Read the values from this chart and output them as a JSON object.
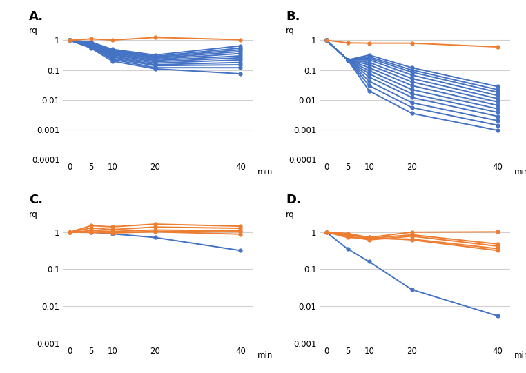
{
  "xvals": [
    0,
    5,
    10,
    20,
    40
  ],
  "panel_A": {
    "label": "A.",
    "blue_lines": [
      [
        1,
        0.88,
        0.5,
        0.32,
        0.65
      ],
      [
        1,
        0.85,
        0.47,
        0.29,
        0.55
      ],
      [
        1,
        0.82,
        0.44,
        0.27,
        0.48
      ],
      [
        1,
        0.79,
        0.41,
        0.25,
        0.42
      ],
      [
        1,
        0.76,
        0.38,
        0.23,
        0.36
      ],
      [
        1,
        0.73,
        0.35,
        0.21,
        0.3
      ],
      [
        1,
        0.7,
        0.33,
        0.19,
        0.26
      ],
      [
        1,
        0.67,
        0.3,
        0.17,
        0.22
      ],
      [
        1,
        0.64,
        0.28,
        0.15,
        0.18
      ],
      [
        1,
        0.61,
        0.25,
        0.14,
        0.15
      ],
      [
        1,
        0.58,
        0.23,
        0.12,
        0.12
      ],
      [
        1,
        0.55,
        0.2,
        0.11,
        0.075
      ]
    ],
    "orange_lines": [
      [
        1,
        1.12,
        1.02,
        1.25,
        1.05
      ]
    ],
    "ylim": [
      0.0001,
      3
    ],
    "yticks": [
      0.0001,
      0.001,
      0.01,
      0.1,
      1
    ],
    "ytick_labels": [
      "0.0001",
      "0.001",
      "0.01",
      "0.1",
      "1"
    ]
  },
  "panel_B": {
    "label": "B.",
    "blue_lines": [
      [
        1,
        0.22,
        0.32,
        0.12,
        0.028
      ],
      [
        1,
        0.22,
        0.28,
        0.1,
        0.022
      ],
      [
        1,
        0.22,
        0.25,
        0.085,
        0.018
      ],
      [
        1,
        0.22,
        0.22,
        0.068,
        0.014
      ],
      [
        1,
        0.22,
        0.18,
        0.052,
        0.011
      ],
      [
        1,
        0.22,
        0.15,
        0.04,
        0.0085
      ],
      [
        1,
        0.22,
        0.12,
        0.03,
        0.0065
      ],
      [
        1,
        0.22,
        0.095,
        0.022,
        0.005
      ],
      [
        1,
        0.22,
        0.075,
        0.016,
        0.0038
      ],
      [
        1,
        0.22,
        0.058,
        0.012,
        0.0028
      ],
      [
        1,
        0.22,
        0.042,
        0.008,
        0.002
      ],
      [
        1,
        0.22,
        0.03,
        0.0055,
        0.0014
      ],
      [
        1,
        0.22,
        0.02,
        0.0035,
        0.00095
      ]
    ],
    "orange_lines": [
      [
        1,
        0.82,
        0.8,
        0.8,
        0.6
      ]
    ],
    "ylim": [
      0.0001,
      3
    ],
    "yticks": [
      0.0001,
      0.001,
      0.01,
      0.1,
      1
    ],
    "ytick_labels": [
      "0.0001",
      "0.001",
      "0.01",
      "0.1",
      "1"
    ]
  },
  "panel_C": {
    "label": "C.",
    "blue_lines": [
      [
        1,
        1.0,
        0.9,
        0.72,
        0.32
      ]
    ],
    "orange_lines": [
      [
        1,
        1.5,
        1.4,
        1.65,
        1.45
      ],
      [
        1,
        1.3,
        1.18,
        1.38,
        1.28
      ],
      [
        1,
        1.1,
        1.05,
        1.15,
        1.08
      ],
      [
        1,
        1.0,
        0.98,
        1.05,
        1.02
      ],
      [
        1,
        0.98,
        0.95,
        1.02,
        0.88
      ]
    ],
    "ylim": [
      0.001,
      4
    ],
    "yticks": [
      0.001,
      0.01,
      0.1,
      1
    ],
    "ytick_labels": [
      "0.001",
      "0.01",
      "0.1",
      "1"
    ]
  },
  "panel_D": {
    "label": "D.",
    "blue_lines": [
      [
        1,
        0.35,
        0.16,
        0.028,
        0.0055
      ]
    ],
    "orange_lines": [
      [
        1,
        0.92,
        0.72,
        1.0,
        1.02
      ],
      [
        1,
        0.85,
        0.68,
        0.85,
        0.48
      ],
      [
        1,
        0.78,
        0.62,
        0.78,
        0.42
      ],
      [
        1,
        0.72,
        0.68,
        0.65,
        0.36
      ],
      [
        1,
        0.88,
        0.72,
        0.62,
        0.32
      ]
    ],
    "ylim": [
      0.001,
      4
    ],
    "yticks": [
      0.001,
      0.01,
      0.1,
      1
    ],
    "ytick_labels": [
      "0.001",
      "0.01",
      "0.1",
      "1"
    ]
  },
  "blue_color": "#4472C4",
  "orange_color": "#ED7D31",
  "marker": "o",
  "markersize": 3.5,
  "linewidth": 1.4,
  "xlabel": "min",
  "ylabel": "rq",
  "bg_color": "#FFFFFF",
  "grid_color": "#D0D0D0",
  "label_fontsize": 13,
  "tick_fontsize": 8.5,
  "rq_fontsize": 9,
  "min_fontsize": 8.5
}
